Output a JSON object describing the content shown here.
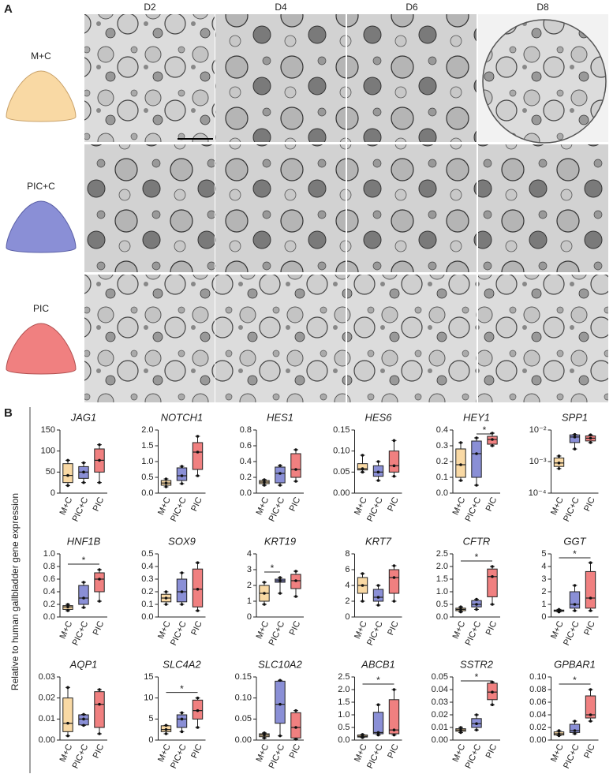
{
  "figure": {
    "panel_a_label": "A",
    "panel_b_label": "B",
    "days": [
      "D2",
      "D4",
      "D6",
      "D8"
    ],
    "conditions": [
      "M+C",
      "PIC+C",
      "PIC"
    ],
    "y_label": "Relative to human gallbladder gene expression"
  },
  "chart_data": [
    {
      "type": "box",
      "title": "JAG1",
      "categories": [
        "M+C",
        "PIC+C",
        "PIC"
      ],
      "colors": [
        "#f9d9a4",
        "#8a8fd6",
        "#f08080"
      ],
      "ylim": [
        0,
        150
      ],
      "yticks": [
        0,
        50,
        100,
        150
      ],
      "boxes": [
        {
          "min": 18,
          "q1": 25,
          "median": 42,
          "q3": 70,
          "max": 78
        },
        {
          "min": 25,
          "q1": 35,
          "median": 50,
          "q3": 63,
          "max": 72
        },
        {
          "min": 25,
          "q1": 50,
          "median": 78,
          "q3": 105,
          "max": 115
        }
      ]
    },
    {
      "type": "box",
      "title": "NOTCH1",
      "categories": [
        "M+C",
        "PIC+C",
        "PIC"
      ],
      "colors": [
        "#f9d9a4",
        "#8a8fd6",
        "#f08080"
      ],
      "ylim": [
        0,
        2
      ],
      "yticks": [
        {
          "value": 0,
          "label": "0.0"
        },
        0.5,
        {
          "value": 1,
          "label": "1.0"
        },
        1.5,
        {
          "value": 2,
          "label": "2.0"
        }
      ],
      "boxes": [
        {
          "min": 0.2,
          "q1": 0.25,
          "median": 0.32,
          "q3": 0.4,
          "max": 0.45
        },
        {
          "min": 0.3,
          "q1": 0.4,
          "median": 0.55,
          "q3": 0.8,
          "max": 0.85
        },
        {
          "min": 0.55,
          "q1": 0.75,
          "median": 1.3,
          "q3": 1.6,
          "max": 1.8
        }
      ]
    },
    {
      "type": "box",
      "title": "HES1",
      "categories": [
        "M+C",
        "PIC+C",
        "PIC"
      ],
      "colors": [
        "#f9d9a4",
        "#8a8fd6",
        "#f08080"
      ],
      "ylim": [
        0,
        0.8
      ],
      "yticks": [
        {
          "value": 0,
          "label": "0.0"
        },
        0.2,
        0.4,
        0.6,
        0.8
      ],
      "boxes": [
        {
          "min": 0.1,
          "q1": 0.12,
          "median": 0.14,
          "q3": 0.16,
          "max": 0.17
        },
        {
          "min": 0.1,
          "q1": 0.13,
          "median": 0.25,
          "q3": 0.33,
          "max": 0.35
        },
        {
          "min": 0.15,
          "q1": 0.2,
          "median": 0.3,
          "q3": 0.5,
          "max": 0.55
        }
      ]
    },
    {
      "type": "box",
      "title": "HES6",
      "categories": [
        "M+C",
        "PIC+C",
        "PIC"
      ],
      "colors": [
        "#f9d9a4",
        "#8a8fd6",
        "#f08080"
      ],
      "ylim": [
        0,
        0.15
      ],
      "yticks": [
        {
          "value": 0,
          "label": "0.00"
        },
        0.05,
        {
          "value": 0.1,
          "label": "0.10"
        },
        0.15
      ],
      "boxes": [
        {
          "min": 0.05,
          "q1": 0.055,
          "median": 0.058,
          "q3": 0.07,
          "max": 0.09
        },
        {
          "min": 0.03,
          "q1": 0.04,
          "median": 0.05,
          "q3": 0.065,
          "max": 0.075
        },
        {
          "min": 0.04,
          "q1": 0.05,
          "median": 0.065,
          "q3": 0.1,
          "max": 0.125
        }
      ]
    },
    {
      "type": "box",
      "title": "HEY1",
      "categories": [
        "M+C",
        "PIC+C",
        "PIC"
      ],
      "colors": [
        "#f9d9a4",
        "#8a8fd6",
        "#f08080"
      ],
      "ylim": [
        0,
        0.4
      ],
      "yticks": [
        {
          "value": 0,
          "label": "0.0"
        },
        0.1,
        0.2,
        0.3,
        0.4
      ],
      "boxes": [
        {
          "min": 0.08,
          "q1": 0.1,
          "median": 0.18,
          "q3": 0.28,
          "max": 0.32
        },
        {
          "min": 0.05,
          "q1": 0.1,
          "median": 0.25,
          "q3": 0.33,
          "max": 0.35
        },
        {
          "min": 0.3,
          "q1": 0.31,
          "median": 0.34,
          "q3": 0.36,
          "max": 0.38
        }
      ],
      "significance": [
        {
          "label": "*",
          "pair": [
            "PIC+C",
            "PIC"
          ]
        }
      ]
    },
    {
      "type": "box",
      "title": "SPP1",
      "categories": [
        "M+C",
        "PIC+C",
        "PIC"
      ],
      "colors": [
        "#f9d9a4",
        "#8a8fd6",
        "#f08080"
      ],
      "log": true,
      "ylim": [
        0.0001,
        0.01
      ],
      "yticks": [
        {
          "value": 0.0001,
          "label": "10⁻⁴"
        },
        {
          "value": 0.001,
          "label": "10⁻³"
        },
        {
          "value": 0.01,
          "label": "10⁻²"
        }
      ],
      "boxes": [
        {
          "min": 0.0006,
          "q1": 0.0007,
          "median": 0.0009,
          "q3": 0.0013,
          "max": 0.0015
        },
        {
          "min": 0.0025,
          "q1": 0.004,
          "median": 0.006,
          "q3": 0.007,
          "max": 0.0072
        },
        {
          "min": 0.004,
          "q1": 0.0045,
          "median": 0.0055,
          "q3": 0.0065,
          "max": 0.007
        }
      ]
    },
    {
      "type": "box",
      "title": "HNF1B",
      "categories": [
        "M+C",
        "PIC+C",
        "PIC"
      ],
      "colors": [
        "#f9d9a4",
        "#8a8fd6",
        "#f08080"
      ],
      "ylim": [
        0,
        1
      ],
      "yticks": [
        {
          "value": 0,
          "label": "0.0"
        },
        0.2,
        0.4,
        0.6,
        0.8,
        {
          "value": 1,
          "label": "1.0"
        }
      ],
      "boxes": [
        {
          "min": 0.1,
          "q1": 0.12,
          "median": 0.16,
          "q3": 0.18,
          "max": 0.2
        },
        {
          "min": 0.15,
          "q1": 0.2,
          "median": 0.3,
          "q3": 0.5,
          "max": 0.55
        },
        {
          "min": 0.25,
          "q1": 0.4,
          "median": 0.6,
          "q3": 0.7,
          "max": 0.75
        }
      ],
      "significance": [
        {
          "label": "*",
          "pair": [
            "M+C",
            "PIC"
          ]
        }
      ]
    },
    {
      "type": "box",
      "title": "SOX9",
      "categories": [
        "M+C",
        "PIC+C",
        "PIC"
      ],
      "colors": [
        "#f9d9a4",
        "#8a8fd6",
        "#f08080"
      ],
      "ylim": [
        0,
        0.5
      ],
      "yticks": [
        {
          "value": 0,
          "label": "0.0"
        },
        0.1,
        0.2,
        0.3,
        0.4,
        0.5
      ],
      "boxes": [
        {
          "min": 0.1,
          "q1": 0.12,
          "median": 0.15,
          "q3": 0.18,
          "max": 0.2
        },
        {
          "min": 0.1,
          "q1": 0.12,
          "median": 0.2,
          "q3": 0.3,
          "max": 0.35
        },
        {
          "min": 0.05,
          "q1": 0.08,
          "median": 0.22,
          "q3": 0.38,
          "max": 0.43
        }
      ]
    },
    {
      "type": "box",
      "title": "KRT19",
      "categories": [
        "M+C",
        "PIC+C",
        "PIC"
      ],
      "colors": [
        "#f9d9a4",
        "#8a8fd6",
        "#f08080"
      ],
      "ylim": [
        0,
        4
      ],
      "yticks": [
        0,
        1,
        2,
        3,
        4
      ],
      "boxes": [
        {
          "min": 0.8,
          "q1": 1,
          "median": 1.5,
          "q3": 2,
          "max": 2.2
        },
        {
          "min": 1.5,
          "q1": 2.2,
          "median": 2.3,
          "q3": 2.4,
          "max": 2.5
        },
        {
          "min": 1.3,
          "q1": 1.8,
          "median": 2.3,
          "q3": 2.7,
          "max": 2.9
        }
      ],
      "significance": [
        {
          "label": "*",
          "pair": [
            "M+C",
            "PIC+C"
          ]
        }
      ]
    },
    {
      "type": "box",
      "title": "KRT7",
      "categories": [
        "M+C",
        "PIC+C",
        "PIC"
      ],
      "colors": [
        "#f9d9a4",
        "#8a8fd6",
        "#f08080"
      ],
      "ylim": [
        0,
        8
      ],
      "yticks": [
        0,
        2,
        4,
        6,
        8
      ],
      "boxes": [
        {
          "min": 2,
          "q1": 3,
          "median": 4,
          "q3": 5,
          "max": 5.5
        },
        {
          "min": 1.5,
          "q1": 2,
          "median": 2.5,
          "q3": 3.5,
          "max": 4
        },
        {
          "min": 2,
          "q1": 3,
          "median": 5,
          "q3": 6,
          "max": 6.5
        }
      ]
    },
    {
      "type": "box",
      "title": "CFTR",
      "categories": [
        "M+C",
        "PIC+C",
        "PIC"
      ],
      "colors": [
        "#f9d9a4",
        "#8a8fd6",
        "#f08080"
      ],
      "ylim": [
        0,
        2.5
      ],
      "yticks": [
        {
          "value": 0,
          "label": "0.0"
        },
        0.5,
        {
          "value": 1,
          "label": "1.0"
        },
        1.5,
        {
          "value": 2,
          "label": "2.0"
        },
        2.5
      ],
      "boxes": [
        {
          "min": 0.2,
          "q1": 0.25,
          "median": 0.3,
          "q3": 0.35,
          "max": 0.4
        },
        {
          "min": 0.3,
          "q1": 0.4,
          "median": 0.5,
          "q3": 0.65,
          "max": 0.7
        },
        {
          "min": 0.5,
          "q1": 0.8,
          "median": 1.6,
          "q3": 1.9,
          "max": 2
        }
      ],
      "significance": [
        {
          "label": "*",
          "pair": [
            "M+C",
            "PIC"
          ]
        }
      ]
    },
    {
      "type": "box",
      "title": "GGT",
      "categories": [
        "M+C",
        "PIC+C",
        "PIC"
      ],
      "colors": [
        "#f9d9a4",
        "#8a8fd6",
        "#f08080"
      ],
      "ylim": [
        0,
        5
      ],
      "yticks": [
        0,
        1,
        2,
        3,
        4,
        5
      ],
      "boxes": [
        {
          "min": 0.4,
          "q1": 0.45,
          "median": 0.5,
          "q3": 0.55,
          "max": 0.6
        },
        {
          "min": 0.5,
          "q1": 0.7,
          "median": 1,
          "q3": 2,
          "max": 2.5
        },
        {
          "min": 0.5,
          "q1": 0.7,
          "median": 1.5,
          "q3": 3.6,
          "max": 4.3
        }
      ],
      "significance": [
        {
          "label": "*",
          "pair": [
            "M+C",
            "PIC"
          ]
        }
      ]
    },
    {
      "type": "box",
      "title": "AQP1",
      "categories": [
        "M+C",
        "PIC+C",
        "PIC"
      ],
      "colors": [
        "#f9d9a4",
        "#8a8fd6",
        "#f08080"
      ],
      "ylim": [
        0,
        0.03
      ],
      "yticks": [
        {
          "value": 0,
          "label": "0.00"
        },
        0.01,
        0.02,
        0.03
      ],
      "boxes": [
        {
          "min": 0.002,
          "q1": 0.004,
          "median": 0.008,
          "q3": 0.02,
          "max": 0.025
        },
        {
          "min": 0.007,
          "q1": 0.0072,
          "median": 0.01,
          "q3": 0.012,
          "max": 0.0122
        },
        {
          "min": 0.003,
          "q1": 0.006,
          "median": 0.017,
          "q3": 0.023,
          "max": 0.024
        }
      ]
    },
    {
      "type": "box",
      "title": "SLC4A2",
      "categories": [
        "M+C",
        "PIC+C",
        "PIC"
      ],
      "colors": [
        "#f9d9a4",
        "#8a8fd6",
        "#f08080"
      ],
      "ylim": [
        0,
        15
      ],
      "yticks": [
        0,
        5,
        10,
        15
      ],
      "boxes": [
        {
          "min": 1.5,
          "q1": 2,
          "median": 2.5,
          "q3": 3.4,
          "max": 3.5
        },
        {
          "min": 2,
          "q1": 3,
          "median": 5,
          "q3": 6,
          "max": 6.5
        },
        {
          "min": 3,
          "q1": 5,
          "median": 7,
          "q3": 9.5,
          "max": 10
        }
      ],
      "significance": [
        {
          "label": "*",
          "pair": [
            "M+C",
            "PIC"
          ]
        }
      ]
    },
    {
      "type": "box",
      "title": "SLC10A2",
      "categories": [
        "M+C",
        "PIC+C",
        "PIC"
      ],
      "colors": [
        "#f9d9a4",
        "#8a8fd6",
        "#f08080"
      ],
      "ylim": [
        0,
        0.15
      ],
      "yticks": [
        {
          "value": 0,
          "label": "0.00"
        },
        0.05,
        {
          "value": 0.1,
          "label": "0.10"
        },
        0.15
      ],
      "boxes": [
        {
          "min": 0.005,
          "q1": 0.008,
          "median": 0.012,
          "q3": 0.015,
          "max": 0.017
        },
        {
          "min": 0.01,
          "q1": 0.04,
          "median": 0.085,
          "q3": 0.14,
          "max": 0.142
        },
        {
          "min": 0.002,
          "q1": 0.005,
          "median": 0.03,
          "q3": 0.065,
          "max": 0.07
        }
      ]
    },
    {
      "type": "box",
      "title": "ABCB1",
      "categories": [
        "M+C",
        "PIC+C",
        "PIC"
      ],
      "colors": [
        "#f9d9a4",
        "#8a8fd6",
        "#f08080"
      ],
      "ylim": [
        0,
        2.5
      ],
      "yticks": [
        {
          "value": 0,
          "label": "0.0"
        },
        0.5,
        {
          "value": 1,
          "label": "1.0"
        },
        1.5,
        {
          "value": 2,
          "label": "2.0"
        },
        2.5
      ],
      "boxes": [
        {
          "min": 0.1,
          "q1": 0.12,
          "median": 0.15,
          "q3": 0.2,
          "max": 0.22
        },
        {
          "min": 0.2,
          "q1": 0.25,
          "median": 0.3,
          "q3": 1.1,
          "max": 1.4
        },
        {
          "min": 0.2,
          "q1": 0.25,
          "median": 0.4,
          "q3": 1.6,
          "max": 2
        }
      ],
      "significance": [
        {
          "label": "*",
          "pair": [
            "M+C",
            "PIC"
          ]
        }
      ]
    },
    {
      "type": "box",
      "title": "SSTR2",
      "categories": [
        "M+C",
        "PIC+C",
        "PIC"
      ],
      "colors": [
        "#f9d9a4",
        "#8a8fd6",
        "#f08080"
      ],
      "ylim": [
        0,
        0.05
      ],
      "yticks": [
        {
          "value": 0,
          "label": "0.00"
        },
        0.01,
        0.02,
        0.03,
        0.04,
        0.05
      ],
      "boxes": [
        {
          "min": 0.006,
          "q1": 0.007,
          "median": 0.008,
          "q3": 0.009,
          "max": 0.01
        },
        {
          "min": 0.008,
          "q1": 0.01,
          "median": 0.013,
          "q3": 0.017,
          "max": 0.02
        },
        {
          "min": 0.028,
          "q1": 0.032,
          "median": 0.038,
          "q3": 0.045,
          "max": 0.046
        }
      ],
      "significance": [
        {
          "label": "*",
          "pair": [
            "M+C",
            "PIC"
          ]
        }
      ]
    },
    {
      "type": "box",
      "title": "GPBAR1",
      "categories": [
        "M+C",
        "PIC+C",
        "PIC"
      ],
      "colors": [
        "#f9d9a4",
        "#8a8fd6",
        "#f08080"
      ],
      "ylim": [
        0,
        0.1
      ],
      "yticks": [
        {
          "value": 0,
          "label": "0.00"
        },
        0.02,
        0.04,
        0.06,
        0.08,
        {
          "value": 0.1,
          "label": "0.10"
        }
      ],
      "boxes": [
        {
          "min": 0.007,
          "q1": 0.008,
          "median": 0.01,
          "q3": 0.013,
          "max": 0.015
        },
        {
          "min": 0.01,
          "q1": 0.012,
          "median": 0.015,
          "q3": 0.025,
          "max": 0.03
        },
        {
          "min": 0.03,
          "q1": 0.035,
          "median": 0.04,
          "q3": 0.07,
          "max": 0.08
        }
      ],
      "significance": [
        {
          "label": "*",
          "pair": [
            "M+C",
            "PIC"
          ]
        }
      ]
    }
  ]
}
